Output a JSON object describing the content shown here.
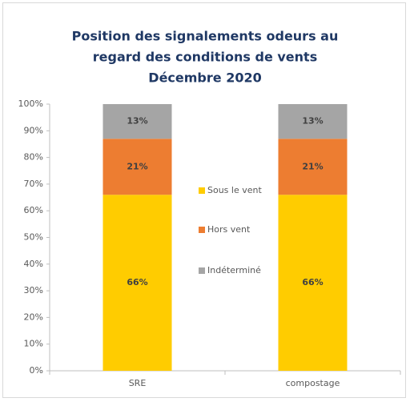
{
  "chart_data": {
    "type": "stacked_bar",
    "title": [
      "Position des signalements odeurs au",
      "regard des conditions de vents",
      "Décembre 2020"
    ],
    "categories": [
      "SRE",
      "compostage"
    ],
    "series": [
      {
        "name": "Sous le vent",
        "color": "#ffcc00",
        "values": [
          66,
          66
        ],
        "value_labels": [
          "66%",
          "66%"
        ]
      },
      {
        "name": "Hors vent",
        "color": "#ed7d31",
        "values": [
          21,
          21
        ],
        "value_labels": [
          "21%",
          "21%"
        ]
      },
      {
        "name": "Indéterminé",
        "color": "#a5a5a5",
        "values": [
          13,
          13
        ],
        "value_labels": [
          "13%",
          "13%"
        ]
      }
    ],
    "ylim": [
      0,
      100
    ],
    "yticks": [
      {
        "value": 0,
        "label": "0%"
      },
      {
        "value": 10,
        "label": "10%"
      },
      {
        "value": 20,
        "label": "20%"
      },
      {
        "value": 30,
        "label": "30%"
      },
      {
        "value": 40,
        "label": "40%"
      },
      {
        "value": 50,
        "label": "50%"
      },
      {
        "value": 60,
        "label": "60%"
      },
      {
        "value": 70,
        "label": "70%"
      },
      {
        "value": 80,
        "label": "80%"
      },
      {
        "value": 90,
        "label": "90%"
      },
      {
        "value": 100,
        "label": "100%"
      }
    ],
    "grid": false,
    "legend": "center"
  }
}
